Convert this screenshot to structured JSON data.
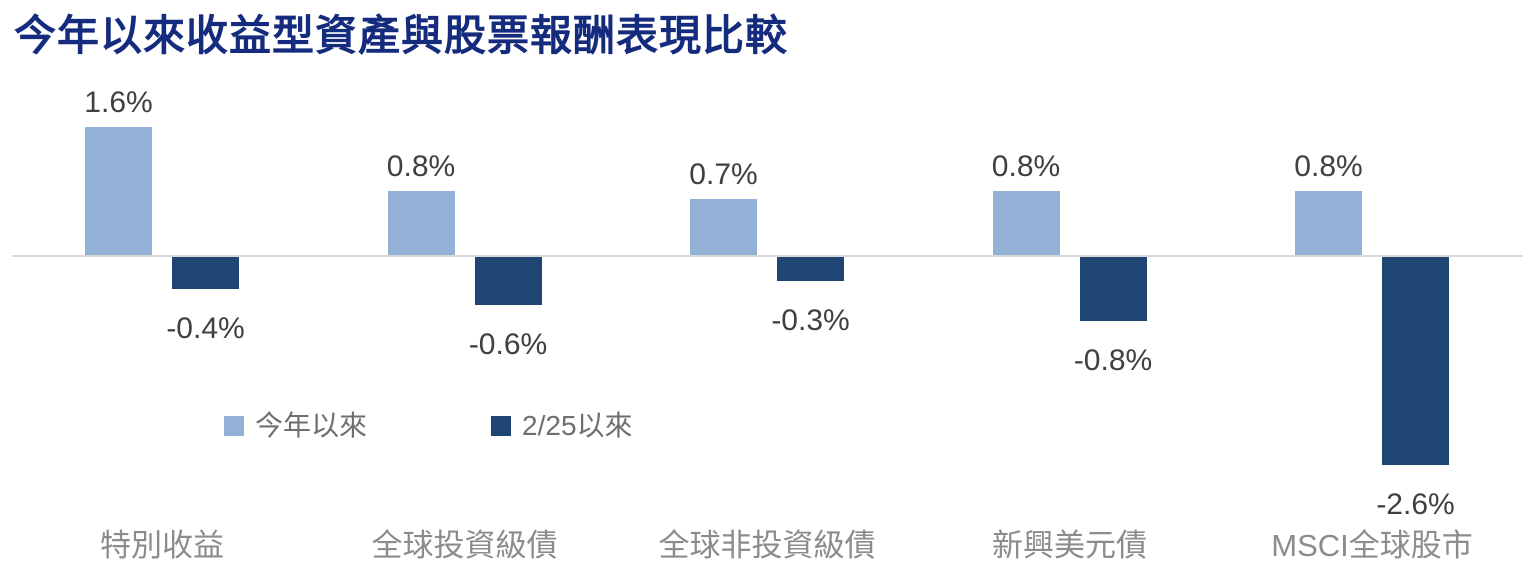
{
  "title": "今年以來收益型資產與股票報酬表現比較",
  "colors": {
    "title": "#152B7E",
    "series_ytd": "#93B1D7",
    "series_since225": "#1F4573",
    "axis_line": "#D9D9D9",
    "value_label": "#404040",
    "category_label": "#8C8C8C",
    "legend_label": "#6F6F6F"
  },
  "legend": {
    "items": [
      {
        "label": "今年以來",
        "color": "#93B1D7"
      },
      {
        "label": "2/25以來",
        "color": "#1F4573"
      }
    ]
  },
  "chart_data": {
    "type": "bar",
    "title": "今年以來收益型資產與股票報酬表現比較",
    "categories": [
      "特別收益",
      "全球投資級債",
      "全球非投資級債",
      "新興美元債",
      "MSCI全球股市"
    ],
    "series": [
      {
        "name": "今年以來",
        "color": "#93B1D7",
        "values": [
          1.6,
          0.8,
          0.7,
          0.8,
          0.8
        ]
      },
      {
        "name": "2/25以來",
        "color": "#1F4573",
        "values": [
          -0.4,
          -0.6,
          -0.3,
          -0.8,
          -2.6
        ]
      }
    ],
    "value_labels": [
      [
        "1.6%",
        "0.8%",
        "0.7%",
        "0.8%",
        "0.8%"
      ],
      [
        "-0.4%",
        "-0.6%",
        "-0.3%",
        "-0.8%",
        "-2.6%"
      ]
    ],
    "ylabel": "",
    "xlabel": "",
    "unit": "%",
    "ylim": [
      -2.6,
      1.6
    ],
    "baseline": 0,
    "grid": false,
    "legend_position": "inside-bottom-left"
  }
}
